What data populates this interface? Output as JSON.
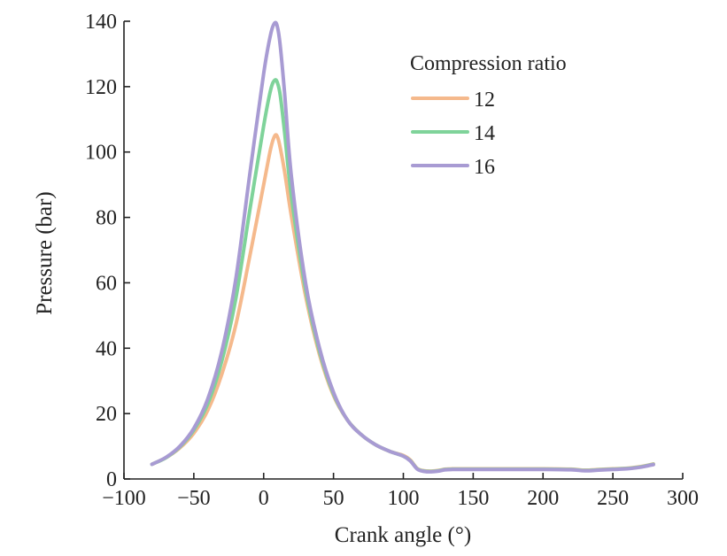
{
  "chart_data": {
    "type": "line",
    "title": "",
    "xlabel": "Crank angle (°)",
    "ylabel": "Pressure (bar)",
    "xlim": [
      -100,
      300
    ],
    "ylim": [
      0,
      140
    ],
    "xticks": [
      -100,
      -50,
      0,
      50,
      100,
      150,
      200,
      250,
      300
    ],
    "yticks": [
      0,
      20,
      40,
      60,
      80,
      100,
      120,
      140
    ],
    "xtick_labels": [
      "−100",
      "−50",
      "0",
      "50",
      "100",
      "150",
      "200",
      "250",
      "300"
    ],
    "ytick_labels": [
      "0",
      "20",
      "40",
      "60",
      "80",
      "100",
      "120",
      "140"
    ],
    "legend": {
      "title": "Compression ratio",
      "position": "top-right"
    },
    "series": [
      {
        "name": "12",
        "color": "#F5B98C",
        "x": [
          -80,
          -70,
          -60,
          -50,
          -40,
          -30,
          -20,
          -10,
          0,
          5,
          8,
          10,
          12,
          15,
          20,
          30,
          40,
          50,
          60,
          70,
          80,
          90,
          100,
          105,
          110,
          115,
          120,
          125,
          130,
          135,
          140,
          160,
          180,
          200,
          220,
          230,
          240,
          250,
          260,
          270,
          279
        ],
        "y": [
          4.5,
          6.5,
          9.5,
          14,
          21,
          32,
          47,
          68,
          90,
          101,
          105,
          104.5,
          101,
          94,
          80,
          56,
          38,
          25.5,
          18,
          13.5,
          10.5,
          8.5,
          7.2,
          5.8,
          3.2,
          2.5,
          2.4,
          2.6,
          3,
          3.1,
          3.1,
          3.1,
          3.1,
          3.1,
          3.0,
          2.7,
          2.9,
          3.1,
          3.3,
          3.8,
          4.6
        ]
      },
      {
        "name": "14",
        "color": "#7FD39A",
        "x": [
          -80,
          -70,
          -60,
          -50,
          -40,
          -30,
          -20,
          -10,
          0,
          5,
          8,
          10,
          12,
          15,
          20,
          30,
          40,
          50,
          60,
          70,
          80,
          90,
          100,
          105,
          110,
          115,
          120,
          125,
          130,
          135,
          140,
          160,
          180,
          200,
          220,
          230,
          240,
          250,
          260,
          270,
          279
        ],
        "y": [
          4.5,
          6.5,
          9.8,
          15,
          23,
          36,
          55,
          82,
          108,
          119,
          122,
          121,
          117,
          106,
          86,
          58,
          39,
          26,
          18,
          13.5,
          10.5,
          8.5,
          7,
          5.6,
          3.1,
          2.4,
          2.3,
          2.5,
          2.9,
          3.0,
          3.0,
          3.0,
          3.0,
          3.0,
          2.9,
          2.6,
          2.8,
          3.0,
          3.2,
          3.7,
          4.5
        ]
      },
      {
        "name": "16",
        "color": "#A89BD3",
        "x": [
          -80,
          -70,
          -60,
          -50,
          -40,
          -30,
          -20,
          -10,
          0,
          5,
          8,
          10,
          12,
          15,
          20,
          30,
          40,
          50,
          60,
          70,
          80,
          90,
          100,
          105,
          110,
          115,
          120,
          125,
          130,
          135,
          140,
          160,
          180,
          200,
          220,
          230,
          240,
          250,
          260,
          270,
          279
        ],
        "y": [
          4.5,
          6.6,
          10,
          15.5,
          24.5,
          39,
          61,
          93,
          124,
          136,
          139.5,
          138,
          132,
          118,
          92,
          60,
          40,
          26.5,
          18,
          13.5,
          10.5,
          8.5,
          7,
          5.5,
          3,
          2.3,
          2.2,
          2.4,
          2.8,
          2.9,
          2.9,
          2.9,
          2.9,
          2.9,
          2.8,
          2.5,
          2.7,
          2.9,
          3.1,
          3.6,
          4.4
        ]
      }
    ]
  }
}
